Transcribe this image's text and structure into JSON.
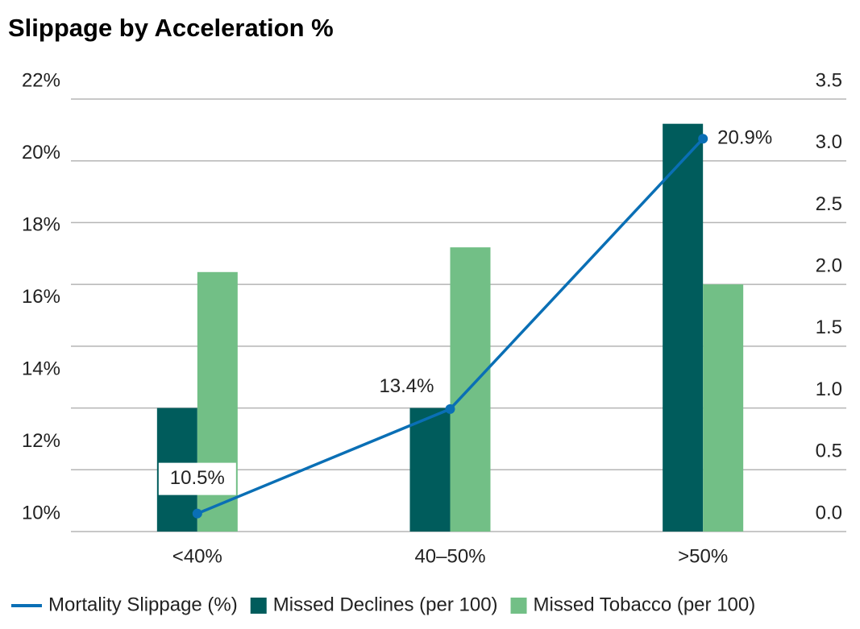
{
  "chart_data": {
    "type": "bar_line",
    "title": "Slippage by Acceleration %",
    "categories": [
      "<40%",
      "40–50%",
      ">50%"
    ],
    "series": [
      {
        "name": "Mortality Slippage (%)",
        "type": "line",
        "color": "#0a6fb5",
        "values": [
          10.5,
          13.4,
          20.9
        ],
        "value_labels": [
          "10.5%",
          "13.4%",
          "20.9%"
        ]
      },
      {
        "name": "Missed Declines (per 100)",
        "type": "bar",
        "axis": "y2",
        "color": "#005c5c",
        "values": [
          1.0,
          1.0,
          3.3
        ]
      },
      {
        "name": "Missed Tobacco (per 100)",
        "type": "bar",
        "axis": "y2",
        "color": "#72bf86",
        "values": [
          2.1,
          2.3,
          2.0
        ]
      }
    ],
    "ylim": [
      10,
      22
    ],
    "yticks": [
      {
        "value": 10,
        "label": "10%"
      },
      {
        "value": 12,
        "label": "12%"
      },
      {
        "value": 14,
        "label": "14%"
      },
      {
        "value": 16,
        "label": "16%"
      },
      {
        "value": 18,
        "label": "18%"
      },
      {
        "value": 20,
        "label": "20%"
      },
      {
        "value": 22,
        "label": "22%"
      }
    ],
    "y2lim": [
      0,
      3.5
    ],
    "y2ticks": [
      {
        "value": 0,
        "label": "0.0"
      },
      0.5,
      {
        "value": 1,
        "label": "1.0"
      },
      1.5,
      {
        "value": 2,
        "label": "2.0"
      },
      2.5,
      {
        "value": 3,
        "label": "3.0"
      },
      3.5
    ],
    "grid": true,
    "legend": "bottom"
  }
}
